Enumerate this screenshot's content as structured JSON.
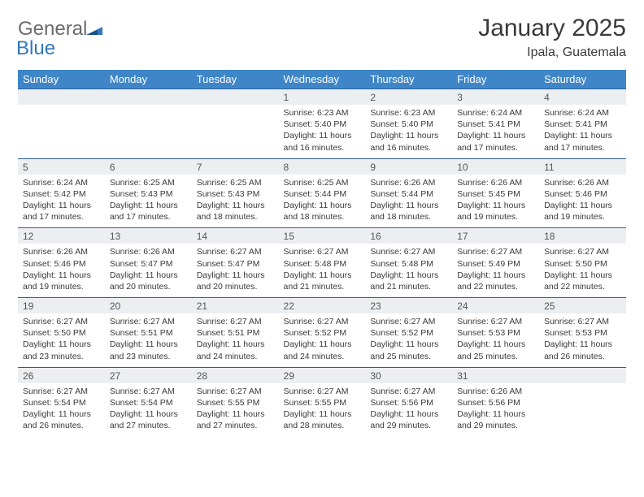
{
  "brand": {
    "part1": "General",
    "part2": "Blue"
  },
  "title": "January 2025",
  "location": "Ipala, Guatemala",
  "colors": {
    "header_bg": "#3f86c8",
    "header_text": "#ffffff",
    "daynum_bg": "#eceff1",
    "daynum_border": "#2f5e8e",
    "body_text": "#3a3a3a",
    "logo_gray": "#6a6a6a",
    "logo_blue": "#2f78bf"
  },
  "dow": [
    "Sunday",
    "Monday",
    "Tuesday",
    "Wednesday",
    "Thursday",
    "Friday",
    "Saturday"
  ],
  "weeks": [
    {
      "nums": [
        "",
        "",
        "",
        "1",
        "2",
        "3",
        "4"
      ],
      "cells": [
        {},
        {},
        {},
        {
          "sunrise": "Sunrise: 6:23 AM",
          "sunset": "Sunset: 5:40 PM",
          "day1": "Daylight: 11 hours",
          "day2": "and 16 minutes."
        },
        {
          "sunrise": "Sunrise: 6:23 AM",
          "sunset": "Sunset: 5:40 PM",
          "day1": "Daylight: 11 hours",
          "day2": "and 16 minutes."
        },
        {
          "sunrise": "Sunrise: 6:24 AM",
          "sunset": "Sunset: 5:41 PM",
          "day1": "Daylight: 11 hours",
          "day2": "and 17 minutes."
        },
        {
          "sunrise": "Sunrise: 6:24 AM",
          "sunset": "Sunset: 5:41 PM",
          "day1": "Daylight: 11 hours",
          "day2": "and 17 minutes."
        }
      ]
    },
    {
      "nums": [
        "5",
        "6",
        "7",
        "8",
        "9",
        "10",
        "11"
      ],
      "cells": [
        {
          "sunrise": "Sunrise: 6:24 AM",
          "sunset": "Sunset: 5:42 PM",
          "day1": "Daylight: 11 hours",
          "day2": "and 17 minutes."
        },
        {
          "sunrise": "Sunrise: 6:25 AM",
          "sunset": "Sunset: 5:43 PM",
          "day1": "Daylight: 11 hours",
          "day2": "and 17 minutes."
        },
        {
          "sunrise": "Sunrise: 6:25 AM",
          "sunset": "Sunset: 5:43 PM",
          "day1": "Daylight: 11 hours",
          "day2": "and 18 minutes."
        },
        {
          "sunrise": "Sunrise: 6:25 AM",
          "sunset": "Sunset: 5:44 PM",
          "day1": "Daylight: 11 hours",
          "day2": "and 18 minutes."
        },
        {
          "sunrise": "Sunrise: 6:26 AM",
          "sunset": "Sunset: 5:44 PM",
          "day1": "Daylight: 11 hours",
          "day2": "and 18 minutes."
        },
        {
          "sunrise": "Sunrise: 6:26 AM",
          "sunset": "Sunset: 5:45 PM",
          "day1": "Daylight: 11 hours",
          "day2": "and 19 minutes."
        },
        {
          "sunrise": "Sunrise: 6:26 AM",
          "sunset": "Sunset: 5:46 PM",
          "day1": "Daylight: 11 hours",
          "day2": "and 19 minutes."
        }
      ]
    },
    {
      "nums": [
        "12",
        "13",
        "14",
        "15",
        "16",
        "17",
        "18"
      ],
      "cells": [
        {
          "sunrise": "Sunrise: 6:26 AM",
          "sunset": "Sunset: 5:46 PM",
          "day1": "Daylight: 11 hours",
          "day2": "and 19 minutes."
        },
        {
          "sunrise": "Sunrise: 6:26 AM",
          "sunset": "Sunset: 5:47 PM",
          "day1": "Daylight: 11 hours",
          "day2": "and 20 minutes."
        },
        {
          "sunrise": "Sunrise: 6:27 AM",
          "sunset": "Sunset: 5:47 PM",
          "day1": "Daylight: 11 hours",
          "day2": "and 20 minutes."
        },
        {
          "sunrise": "Sunrise: 6:27 AM",
          "sunset": "Sunset: 5:48 PM",
          "day1": "Daylight: 11 hours",
          "day2": "and 21 minutes."
        },
        {
          "sunrise": "Sunrise: 6:27 AM",
          "sunset": "Sunset: 5:48 PM",
          "day1": "Daylight: 11 hours",
          "day2": "and 21 minutes."
        },
        {
          "sunrise": "Sunrise: 6:27 AM",
          "sunset": "Sunset: 5:49 PM",
          "day1": "Daylight: 11 hours",
          "day2": "and 22 minutes."
        },
        {
          "sunrise": "Sunrise: 6:27 AM",
          "sunset": "Sunset: 5:50 PM",
          "day1": "Daylight: 11 hours",
          "day2": "and 22 minutes."
        }
      ]
    },
    {
      "nums": [
        "19",
        "20",
        "21",
        "22",
        "23",
        "24",
        "25"
      ],
      "cells": [
        {
          "sunrise": "Sunrise: 6:27 AM",
          "sunset": "Sunset: 5:50 PM",
          "day1": "Daylight: 11 hours",
          "day2": "and 23 minutes."
        },
        {
          "sunrise": "Sunrise: 6:27 AM",
          "sunset": "Sunset: 5:51 PM",
          "day1": "Daylight: 11 hours",
          "day2": "and 23 minutes."
        },
        {
          "sunrise": "Sunrise: 6:27 AM",
          "sunset": "Sunset: 5:51 PM",
          "day1": "Daylight: 11 hours",
          "day2": "and 24 minutes."
        },
        {
          "sunrise": "Sunrise: 6:27 AM",
          "sunset": "Sunset: 5:52 PM",
          "day1": "Daylight: 11 hours",
          "day2": "and 24 minutes."
        },
        {
          "sunrise": "Sunrise: 6:27 AM",
          "sunset": "Sunset: 5:52 PM",
          "day1": "Daylight: 11 hours",
          "day2": "and 25 minutes."
        },
        {
          "sunrise": "Sunrise: 6:27 AM",
          "sunset": "Sunset: 5:53 PM",
          "day1": "Daylight: 11 hours",
          "day2": "and 25 minutes."
        },
        {
          "sunrise": "Sunrise: 6:27 AM",
          "sunset": "Sunset: 5:53 PM",
          "day1": "Daylight: 11 hours",
          "day2": "and 26 minutes."
        }
      ]
    },
    {
      "nums": [
        "26",
        "27",
        "28",
        "29",
        "30",
        "31",
        ""
      ],
      "cells": [
        {
          "sunrise": "Sunrise: 6:27 AM",
          "sunset": "Sunset: 5:54 PM",
          "day1": "Daylight: 11 hours",
          "day2": "and 26 minutes."
        },
        {
          "sunrise": "Sunrise: 6:27 AM",
          "sunset": "Sunset: 5:54 PM",
          "day1": "Daylight: 11 hours",
          "day2": "and 27 minutes."
        },
        {
          "sunrise": "Sunrise: 6:27 AM",
          "sunset": "Sunset: 5:55 PM",
          "day1": "Daylight: 11 hours",
          "day2": "and 27 minutes."
        },
        {
          "sunrise": "Sunrise: 6:27 AM",
          "sunset": "Sunset: 5:55 PM",
          "day1": "Daylight: 11 hours",
          "day2": "and 28 minutes."
        },
        {
          "sunrise": "Sunrise: 6:27 AM",
          "sunset": "Sunset: 5:56 PM",
          "day1": "Daylight: 11 hours",
          "day2": "and 29 minutes."
        },
        {
          "sunrise": "Sunrise: 6:26 AM",
          "sunset": "Sunset: 5:56 PM",
          "day1": "Daylight: 11 hours",
          "day2": "and 29 minutes."
        },
        {}
      ]
    }
  ]
}
